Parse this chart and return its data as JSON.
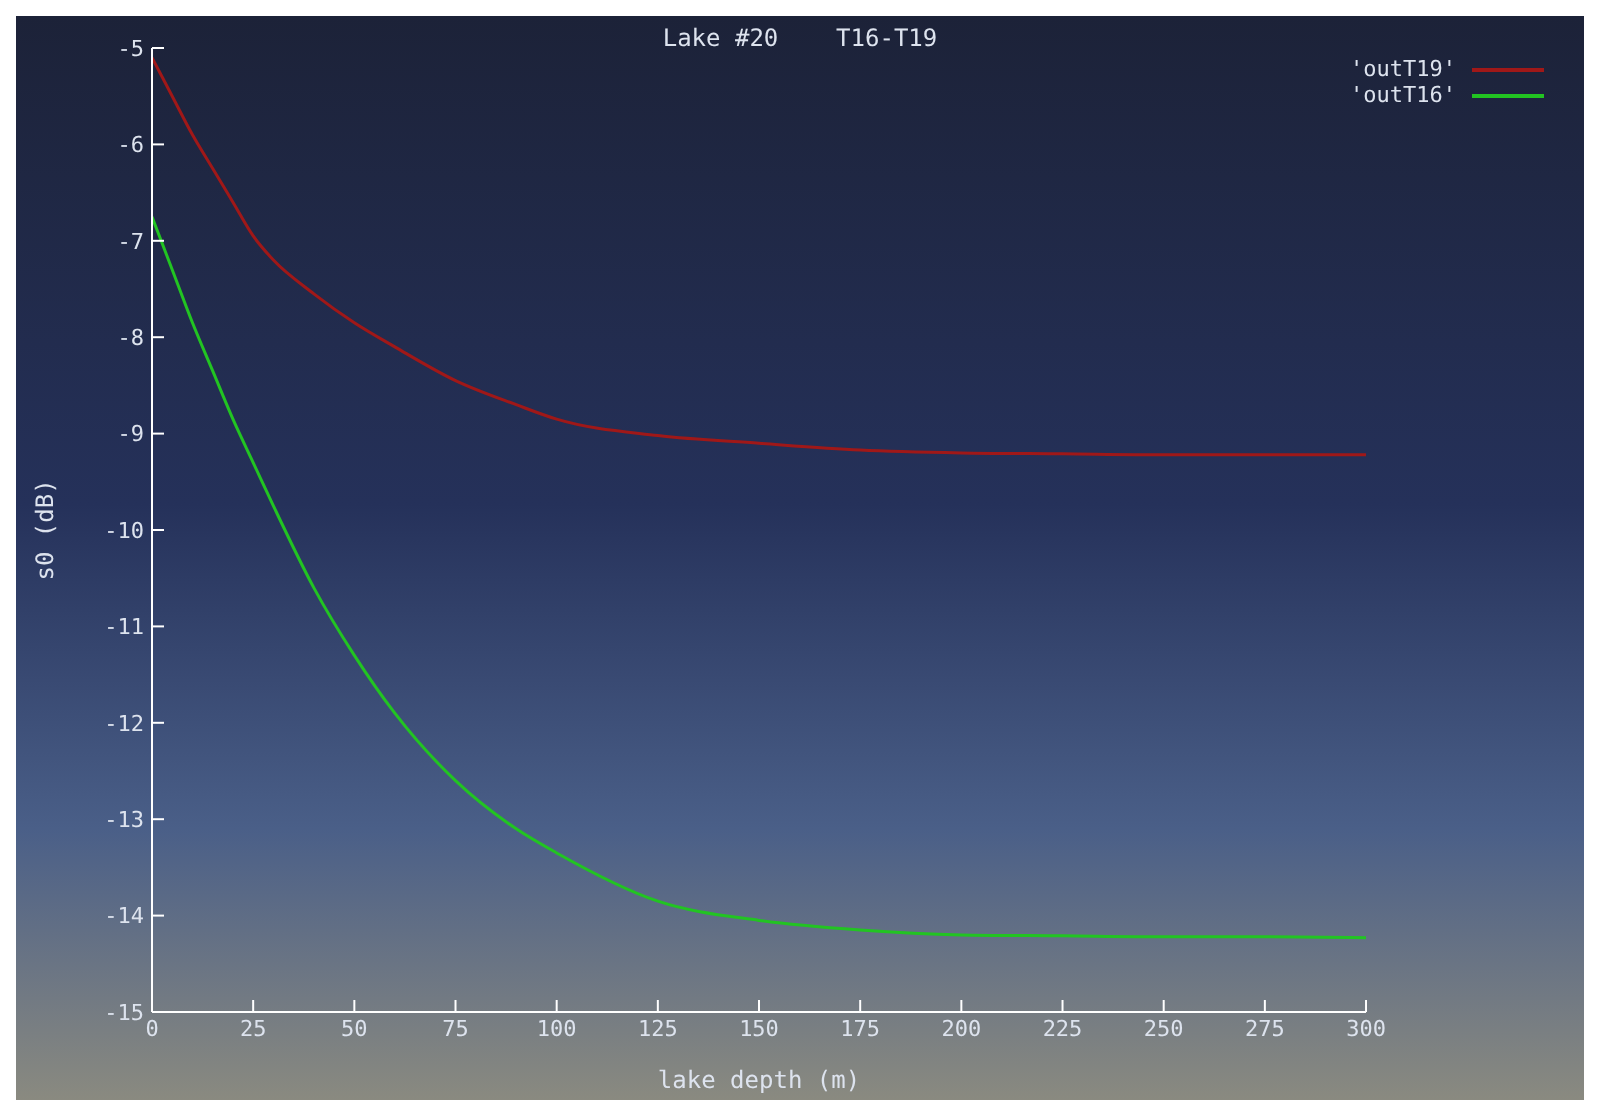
{
  "chart_data": {
    "type": "line",
    "title": "Lake #20    T16-T19",
    "xlabel": "lake depth (m)",
    "ylabel": "s0 (dB)",
    "x": [
      0,
      5,
      10,
      15,
      20,
      25,
      30,
      40,
      50,
      60,
      75,
      90,
      100,
      125,
      150,
      175,
      200,
      225,
      250,
      275,
      300
    ],
    "series": [
      {
        "name": "'outT19'",
        "color": "#a01818",
        "values": [
          -5.1,
          -5.5,
          -5.9,
          -6.25,
          -6.6,
          -6.95,
          -7.2,
          -7.55,
          -7.85,
          -8.1,
          -8.45,
          -8.7,
          -8.85,
          -9.02,
          -9.1,
          -9.17,
          -9.2,
          -9.21,
          -9.22,
          -9.22,
          -9.22
        ]
      },
      {
        "name": "'outT16'",
        "color": "#22c422",
        "values": [
          -6.75,
          -7.3,
          -7.85,
          -8.35,
          -8.85,
          -9.3,
          -9.75,
          -10.6,
          -11.3,
          -11.9,
          -12.6,
          -13.1,
          -13.35,
          -13.85,
          -14.05,
          -14.15,
          -14.2,
          -14.21,
          -14.22,
          -14.22,
          -14.23
        ]
      }
    ],
    "xlim": [
      0,
      300
    ],
    "xticks": [
      0,
      25,
      50,
      75,
      100,
      125,
      150,
      175,
      200,
      225,
      250,
      275,
      300
    ],
    "ylim": [
      -15,
      -5
    ],
    "yticks": [
      -15,
      -14,
      -13,
      -12,
      -11,
      -10,
      -9,
      -8,
      -7,
      -6,
      -5
    ],
    "grid": false,
    "legend": "top right",
    "marker": "none",
    "line_style": "solid"
  }
}
